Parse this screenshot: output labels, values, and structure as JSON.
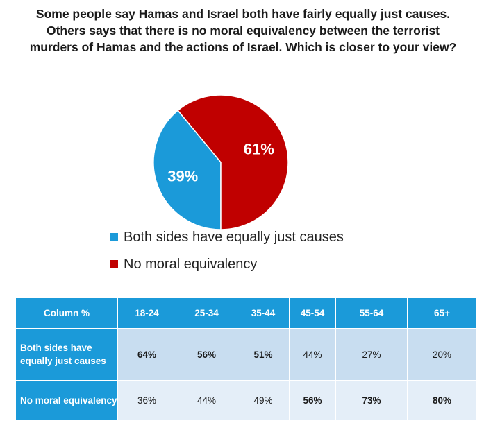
{
  "title": "Some people say Hamas and Israel both have fairly equally just causes. Others says that there is no moral equivalency between the terrorist murders of Hamas and the actions of Israel. Which is closer to your view?",
  "chart_data": {
    "type": "pie",
    "series": [
      {
        "name": "Both sides have equally just causes",
        "value": 39,
        "label": "39%",
        "color": "#1b9ad9"
      },
      {
        "name": "No moral equivalency",
        "value": 61,
        "label": "61%",
        "color": "#c00000"
      }
    ],
    "legend_placement": "bottom"
  },
  "table": {
    "corner": "Column %",
    "columns": [
      "18-24",
      "25-34",
      "35-44",
      "45-54",
      "55-64",
      "65+"
    ],
    "rows": [
      {
        "label": "Both sides have equally just causes",
        "values": [
          "64%",
          "56%",
          "51%",
          "44%",
          "27%",
          "20%"
        ],
        "bold": [
          true,
          true,
          true,
          false,
          false,
          false
        ]
      },
      {
        "label": "No moral equivalency",
        "values": [
          "36%",
          "44%",
          "49%",
          "56%",
          "73%",
          "80%"
        ],
        "bold": [
          false,
          false,
          false,
          true,
          true,
          true
        ]
      }
    ]
  },
  "colors": {
    "accent": "#1b9ad9",
    "red": "#c00000",
    "row1": "#c8ddf0",
    "row2": "#e4eef8"
  }
}
